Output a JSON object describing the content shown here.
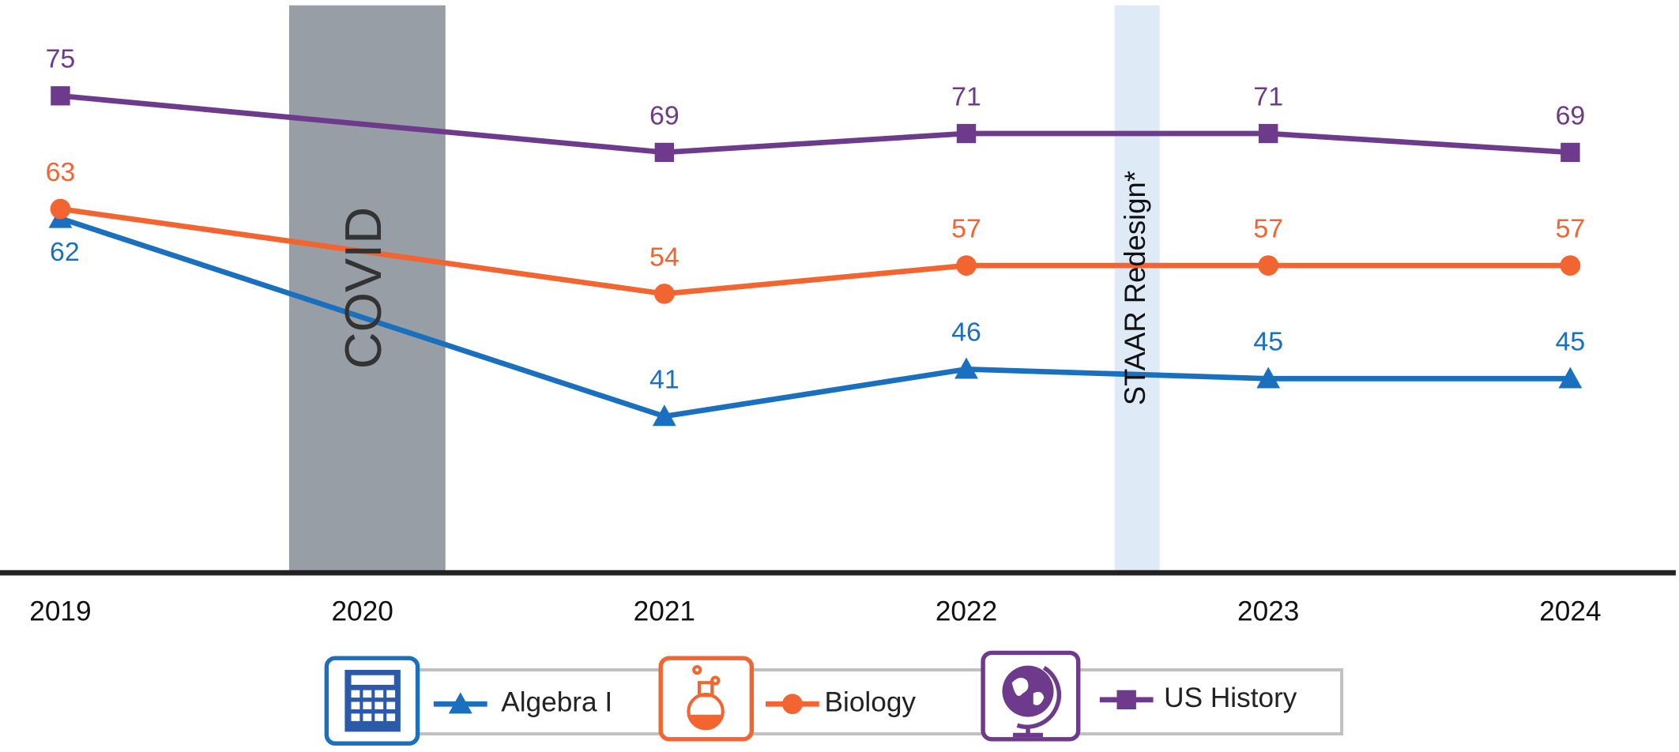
{
  "chart_data": {
    "type": "line",
    "xlim": [
      2018.8,
      2024.36
    ],
    "xticks": [
      2019,
      2020,
      2021,
      2022,
      2023,
      2024
    ],
    "ylim": [
      24.4,
      84.6
    ],
    "annotations": [
      "COVID",
      "STAAR Redesign*"
    ],
    "series": [
      {
        "name": "Algebra I",
        "color": "#1a6fbf",
        "marker": "triangle",
        "x": [
          2019,
          2021,
          2022,
          2023,
          2024
        ],
        "values": [
          62,
          41,
          46,
          45,
          45
        ]
      },
      {
        "name": "Biology",
        "color": "#f26430",
        "marker": "circle",
        "x": [
          2019,
          2021,
          2022,
          2023,
          2024
        ],
        "values": [
          63,
          54,
          57,
          57,
          57
        ]
      },
      {
        "name": "US History",
        "color": "#6d3a8c",
        "marker": "square",
        "x": [
          2019,
          2021,
          2022,
          2023,
          2024
        ],
        "values": [
          75,
          69,
          71,
          71,
          69
        ]
      }
    ]
  }
}
